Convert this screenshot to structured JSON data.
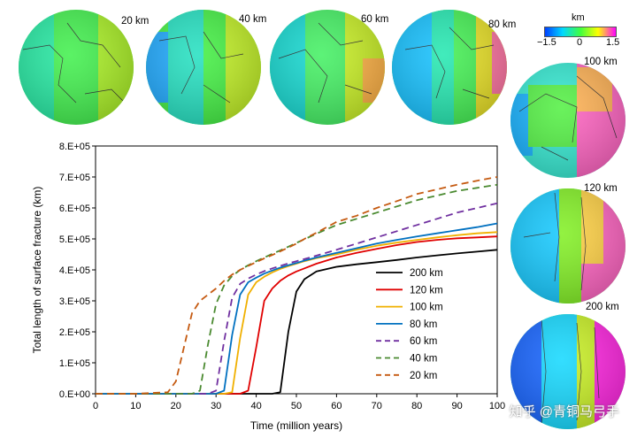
{
  "colorbar": {
    "unit": "km",
    "min_label": "−1.5",
    "mid_label": "0",
    "max_label": "1.5",
    "colors": [
      "#0040ff",
      "#00d8ff",
      "#40ff40",
      "#ffff00",
      "#ff00ff"
    ]
  },
  "globes": [
    {
      "label": "20 km"
    },
    {
      "label": "40 km"
    },
    {
      "label": "60 km"
    },
    {
      "label": "80 km"
    },
    {
      "label": "100 km"
    },
    {
      "label": "120 km"
    },
    {
      "label": "200 km"
    }
  ],
  "watermark": "知乎 @青铜马弓手",
  "chart_data": {
    "type": "line",
    "xlabel": "Time (million years)",
    "ylabel": "Total length of surface fracture (km)",
    "xlim": [
      0,
      100
    ],
    "ylim": [
      0,
      800000
    ],
    "xticks": [
      "0",
      "10",
      "20",
      "30",
      "40",
      "50",
      "60",
      "70",
      "80",
      "90",
      "100"
    ],
    "yticks": [
      "0.E+00",
      "1.E+05",
      "2.E+05",
      "3.E+05",
      "4.E+05",
      "5.E+05",
      "6.E+05",
      "7.E+05",
      "8.E+05"
    ],
    "legend_position": "bottom-right",
    "x": [
      0,
      10,
      18,
      20,
      22,
      24,
      26,
      28,
      30,
      32,
      34,
      36,
      38,
      40,
      42,
      44,
      46,
      48,
      50,
      52,
      55,
      60,
      65,
      70,
      75,
      80,
      85,
      90,
      95,
      100
    ],
    "series": [
      {
        "name": "200 km",
        "color": "#000000",
        "dashed": false,
        "values": [
          0,
          0,
          0,
          0,
          0,
          0,
          0,
          0,
          0,
          0,
          0,
          0,
          0,
          0,
          0,
          0,
          5000,
          200000,
          330000,
          370000,
          395000,
          410000,
          418000,
          425000,
          432000,
          440000,
          447000,
          453000,
          459000,
          465000
        ]
      },
      {
        "name": "120 km",
        "color": "#e00000",
        "dashed": false,
        "values": [
          0,
          0,
          0,
          0,
          0,
          0,
          0,
          0,
          0,
          0,
          0,
          0,
          10000,
          150000,
          300000,
          340000,
          365000,
          382000,
          395000,
          405000,
          420000,
          440000,
          455000,
          468000,
          480000,
          490000,
          497000,
          502000,
          505000,
          508000
        ]
      },
      {
        "name": "100 km",
        "color": "#f0b000",
        "dashed": false,
        "values": [
          0,
          0,
          0,
          0,
          0,
          0,
          0,
          0,
          0,
          0,
          5000,
          180000,
          320000,
          360000,
          378000,
          392000,
          403000,
          412000,
          420000,
          428000,
          438000,
          450000,
          465000,
          478000,
          488000,
          497000,
          505000,
          512000,
          518000,
          522000
        ]
      },
      {
        "name": "80 km",
        "color": "#0070c0",
        "dashed": false,
        "values": [
          0,
          0,
          0,
          0,
          0,
          0,
          0,
          0,
          0,
          10000,
          190000,
          320000,
          360000,
          375000,
          388000,
          398000,
          407000,
          415000,
          422000,
          430000,
          440000,
          455000,
          470000,
          485000,
          497000,
          508000,
          518000,
          528000,
          538000,
          550000
        ]
      },
      {
        "name": "60 km",
        "color": "#7030a0",
        "dashed": true,
        "values": [
          0,
          0,
          0,
          0,
          0,
          0,
          0,
          0,
          10000,
          170000,
          310000,
          355000,
          372000,
          385000,
          396000,
          405000,
          413000,
          421000,
          428000,
          435000,
          446000,
          465000,
          485000,
          505000,
          525000,
          545000,
          565000,
          585000,
          600000,
          615000
        ]
      },
      {
        "name": "40 km",
        "color": "#4a8a30",
        "dashed": true,
        "values": [
          0,
          0,
          0,
          0,
          0,
          0,
          10000,
          160000,
          290000,
          350000,
          380000,
          400000,
          415000,
          428000,
          440000,
          452000,
          463000,
          475000,
          487000,
          499000,
          517000,
          545000,
          565000,
          585000,
          605000,
          625000,
          640000,
          655000,
          665000,
          675000
        ]
      },
      {
        "name": "20 km",
        "color": "#c55a11",
        "dashed": true,
        "values": [
          0,
          0,
          5000,
          40000,
          150000,
          260000,
          300000,
          320000,
          340000,
          365000,
          385000,
          400000,
          413000,
          425000,
          437000,
          448000,
          460000,
          472000,
          485000,
          500000,
          520000,
          555000,
          575000,
          600000,
          622000,
          645000,
          660000,
          675000,
          688000,
          700000
        ]
      }
    ]
  }
}
